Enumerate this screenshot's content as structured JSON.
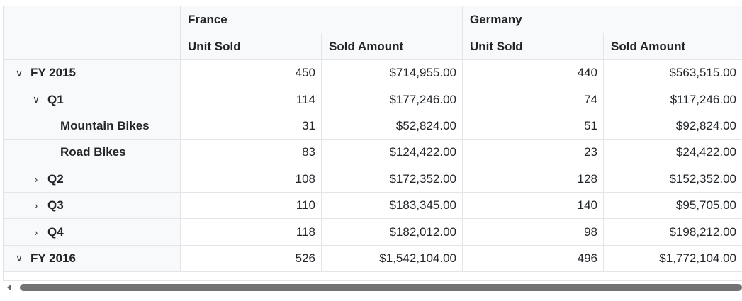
{
  "columns": {
    "countries": [
      "France",
      "Germany"
    ],
    "measures": [
      "Unit Sold",
      "Sold Amount",
      "Unit Sold",
      "Sold Amount"
    ]
  },
  "rows": [
    {
      "label": "FY 2015",
      "level": 0,
      "toggle": "⌄",
      "values": [
        "450",
        "$714,955.00",
        "440",
        "$563,515.00"
      ]
    },
    {
      "label": "Q1",
      "level": 1,
      "toggle": "⌄",
      "values": [
        "114",
        "$177,246.00",
        "74",
        "$117,246.00"
      ]
    },
    {
      "label": "Mountain Bikes",
      "level": 2,
      "toggle": "",
      "values": [
        "31",
        "$52,824.00",
        "51",
        "$92,824.00"
      ]
    },
    {
      "label": "Road Bikes",
      "level": 2,
      "toggle": "",
      "values": [
        "83",
        "$124,422.00",
        "23",
        "$24,422.00"
      ]
    },
    {
      "label": "Q2",
      "level": 1,
      "toggle": "›",
      "values": [
        "108",
        "$172,352.00",
        "128",
        "$152,352.00"
      ]
    },
    {
      "label": "Q3",
      "level": 1,
      "toggle": "›",
      "values": [
        "110",
        "$183,345.00",
        "140",
        "$95,705.00"
      ]
    },
    {
      "label": "Q4",
      "level": 1,
      "toggle": "›",
      "values": [
        "118",
        "$182,012.00",
        "98",
        "$198,212.00"
      ]
    },
    {
      "label": "FY 2016",
      "level": 0,
      "toggle": "⌄",
      "values": [
        "526",
        "$1,542,104.00",
        "496",
        "$1,772,104.00"
      ]
    }
  ]
}
